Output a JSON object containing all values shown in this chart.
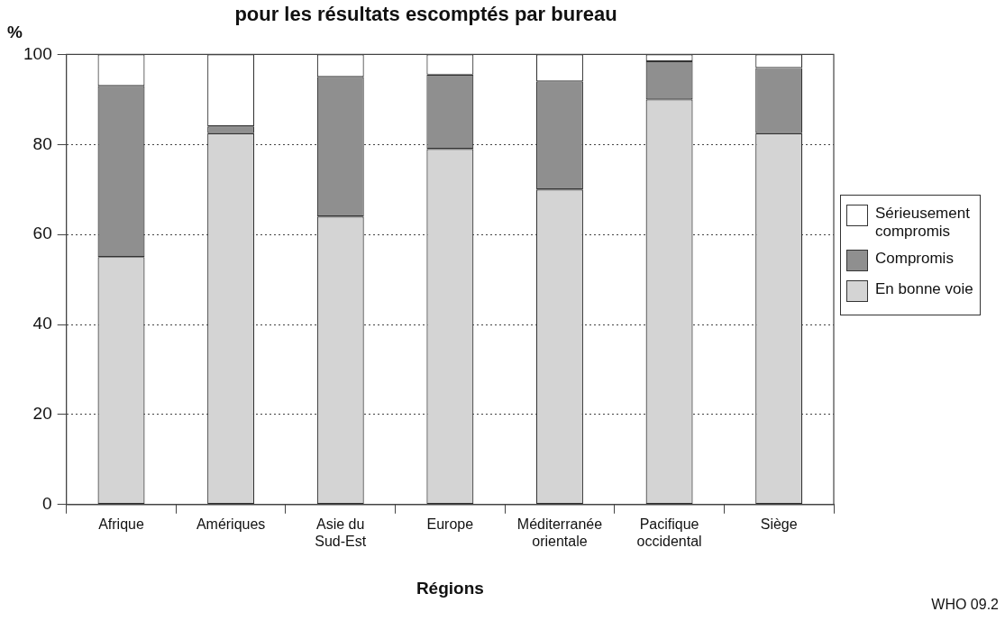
{
  "chart_data": {
    "type": "bar",
    "stacked": true,
    "title": "pour les résultats escomptés par bureau",
    "ylabel": "%",
    "xlabel": "Régions",
    "categories": [
      "Afrique",
      "Amériques",
      "Asie du Sud-Est",
      "Europe",
      "Méditerranée orientale",
      "Pacifique occidental",
      "Siège"
    ],
    "series": [
      {
        "name": "En bonne voie",
        "color": "#d4d4d4",
        "values": [
          55,
          82.5,
          64,
          79,
          70,
          90,
          82.5
        ]
      },
      {
        "name": "Compromis",
        "color": "#8f8f8f",
        "values": [
          38,
          1.5,
          31,
          16.5,
          24,
          8.5,
          14.5
        ]
      },
      {
        "name": "Sérieusement compromis",
        "color": "#ffffff",
        "values": [
          7,
          16,
          5,
          4.5,
          6,
          1.5,
          3
        ]
      }
    ],
    "ylim": [
      0,
      100
    ],
    "yticks": [
      0,
      20,
      40,
      60,
      80,
      100
    ],
    "grid": "y",
    "legend": "right",
    "annotations": [
      "WHO 09.2"
    ]
  }
}
